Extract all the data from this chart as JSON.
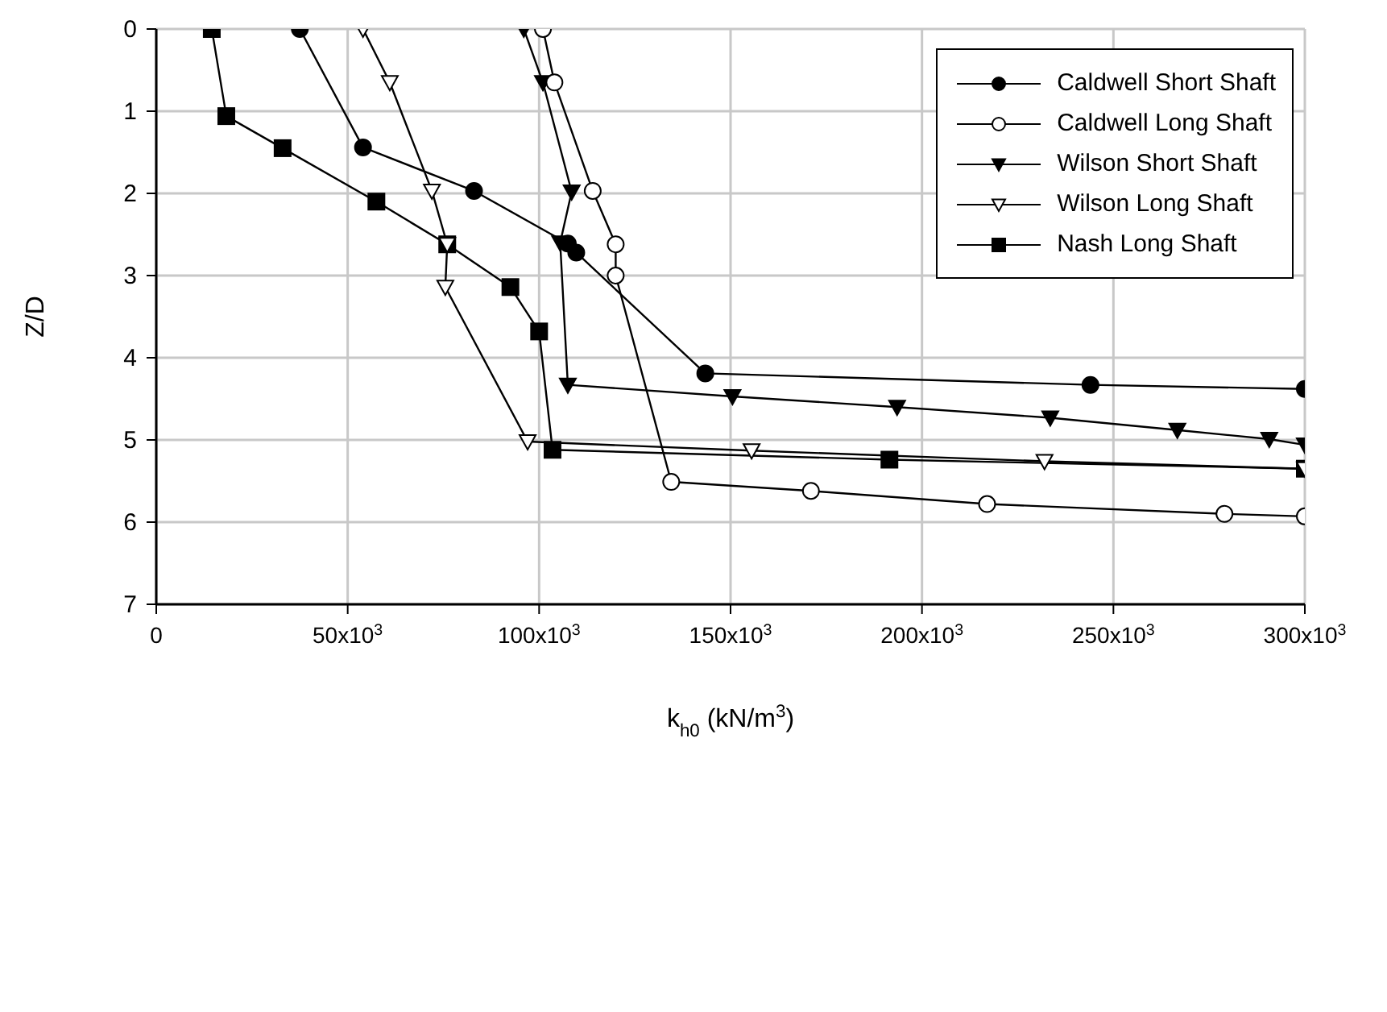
{
  "chart_data": {
    "type": "line",
    "xlabel": "k$_{h0}$ (kN/m$^{3}$)",
    "ylabel": "Z/D",
    "xlim": [
      0,
      300000
    ],
    "xticks": [
      0,
      {
        "value": 50000,
        "label": "50x10$^{3}$"
      },
      {
        "value": 100000,
        "label": "100x10$^{3}$"
      },
      {
        "value": 150000,
        "label": "150x10$^{3}$"
      },
      {
        "value": 200000,
        "label": "200x10$^{3}$"
      },
      {
        "value": 250000,
        "label": "250x10$^{3}$"
      },
      {
        "value": 300000,
        "label": "300x10$^{3}$"
      }
    ],
    "ylim": [
      7,
      0
    ],
    "yticks": [
      0,
      1,
      2,
      3,
      4,
      5,
      6,
      7
    ],
    "grid": true,
    "legend": "top right",
    "line_style": "solid",
    "series": [
      {
        "name": "Caldwell Short Shaft",
        "color": "#000000",
        "marker": "circle",
        "x": [
          37500,
          54000,
          83000,
          107500,
          109700,
          143400,
          244000,
          300000
        ],
        "values": [
          0,
          1.44,
          1.97,
          2.61,
          2.72,
          4.19,
          4.33,
          4.38
        ]
      },
      {
        "name": "Caldwell Long Shaft",
        "color": "#000000",
        "marker": "circle-open",
        "x": [
          101000,
          104000,
          114000,
          120000,
          120000,
          134500,
          171000,
          217000,
          279000,
          300000
        ],
        "values": [
          0,
          0.65,
          1.97,
          2.62,
          3.0,
          5.51,
          5.62,
          5.78,
          5.9,
          5.93
        ]
      },
      {
        "name": "Wilson Short Shaft",
        "color": "#000000",
        "marker": "triangle",
        "x": [
          96000,
          101000,
          108500,
          105500,
          107500,
          150500,
          193500,
          233500,
          266700,
          290700,
          300000
        ],
        "values": [
          0,
          0.65,
          1.98,
          2.6,
          4.33,
          4.47,
          4.6,
          4.73,
          4.88,
          4.99,
          5.06
        ]
      },
      {
        "name": "Wilson Long Shaft",
        "color": "#000000",
        "marker": "triangle-open",
        "x": [
          54000,
          61000,
          72000,
          76000,
          75500,
          97000,
          155500,
          232000,
          300000
        ],
        "values": [
          0,
          0.65,
          1.97,
          2.62,
          3.14,
          5.02,
          5.13,
          5.26,
          5.35
        ]
      },
      {
        "name": "Nash Long Shaft",
        "color": "#000000",
        "marker": "square",
        "x": [
          14500,
          18300,
          33000,
          57500,
          76000,
          92500,
          100000,
          103500,
          191500,
          300000
        ],
        "values": [
          0,
          1.06,
          1.45,
          2.1,
          2.62,
          3.14,
          3.68,
          5.12,
          5.24,
          5.35
        ]
      }
    ]
  }
}
